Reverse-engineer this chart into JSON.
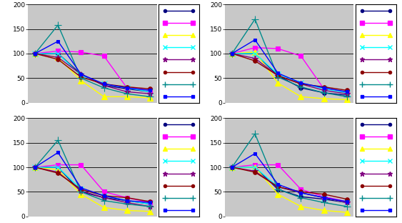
{
  "x": [
    0,
    1,
    2,
    3,
    4,
    5
  ],
  "series": {
    "top_left": [
      [
        100,
        100,
        58,
        35,
        28,
        22
      ],
      [
        100,
        105,
        103,
        95,
        30,
        25
      ],
      [
        100,
        92,
        45,
        12,
        12,
        10
      ],
      [
        100,
        100,
        55,
        38,
        30,
        22
      ],
      [
        100,
        92,
        58,
        35,
        22,
        18
      ],
      [
        100,
        88,
        52,
        38,
        32,
        28
      ],
      [
        100,
        158,
        50,
        30,
        18,
        12
      ],
      [
        100,
        125,
        58,
        38,
        30,
        25
      ]
    ],
    "top_right": [
      [
        100,
        100,
        55,
        30,
        20,
        15
      ],
      [
        100,
        112,
        110,
        95,
        28,
        22
      ],
      [
        100,
        103,
        40,
        12,
        8,
        6
      ],
      [
        100,
        100,
        58,
        40,
        28,
        20
      ],
      [
        100,
        90,
        55,
        38,
        25,
        18
      ],
      [
        100,
        85,
        55,
        38,
        32,
        25
      ],
      [
        100,
        170,
        52,
        32,
        20,
        12
      ],
      [
        100,
        128,
        60,
        40,
        30,
        22
      ]
    ],
    "bottom_left": [
      [
        100,
        100,
        50,
        38,
        32,
        25
      ],
      [
        100,
        105,
        105,
        50,
        38,
        28
      ],
      [
        100,
        95,
        45,
        18,
        12,
        10
      ],
      [
        100,
        100,
        55,
        42,
        32,
        25
      ],
      [
        100,
        90,
        52,
        38,
        28,
        20
      ],
      [
        100,
        88,
        55,
        42,
        38,
        30
      ],
      [
        100,
        155,
        50,
        32,
        25,
        20
      ],
      [
        100,
        130,
        58,
        42,
        32,
        28
      ]
    ],
    "bottom_right": [
      [
        100,
        100,
        55,
        40,
        35,
        28
      ],
      [
        100,
        105,
        105,
        55,
        40,
        30
      ],
      [
        100,
        100,
        45,
        20,
        12,
        8
      ],
      [
        100,
        100,
        60,
        48,
        38,
        28
      ],
      [
        100,
        92,
        60,
        48,
        38,
        28
      ],
      [
        100,
        90,
        60,
        50,
        45,
        35
      ],
      [
        100,
        168,
        55,
        38,
        28,
        20
      ],
      [
        100,
        128,
        65,
        48,
        38,
        30
      ]
    ]
  },
  "colors": [
    "#000080",
    "#FF00FF",
    "#FFFF00",
    "#00FFFF",
    "#800080",
    "#8B0000",
    "#008B8B",
    "#0000FF"
  ],
  "markers": [
    "o",
    "s",
    "^",
    "x",
    "*",
    "o",
    "+",
    "s"
  ],
  "marker_colors": [
    "#000080",
    "#FF00FF",
    "#FFFF00",
    "#00FFFF",
    "#800080",
    "#8B0000",
    "#008B8B",
    "#0000FF"
  ],
  "markersizes": [
    4,
    5,
    6,
    6,
    6,
    4,
    7,
    3
  ],
  "linewidths": [
    1.0,
    1.0,
    1.0,
    1.0,
    1.0,
    1.0,
    1.0,
    1.0
  ],
  "bg_color": "#C8C8C8",
  "ylim": [
    0,
    200
  ],
  "yticks": [
    0,
    50,
    100,
    150,
    200
  ]
}
